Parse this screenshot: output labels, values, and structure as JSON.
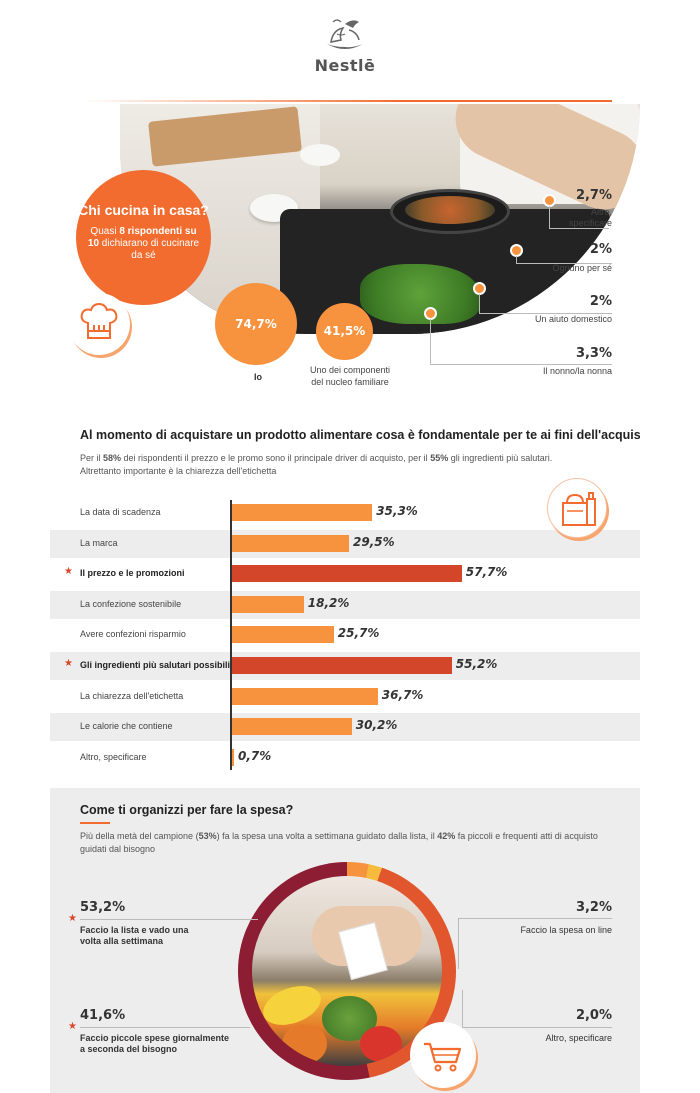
{
  "brand": {
    "name": "Nestlē"
  },
  "colors": {
    "orange": "#f26c2f",
    "light_orange": "#f7933f",
    "red": "#d4462a",
    "dark_red": "#8c1d33",
    "gray_bg": "#eeeded"
  },
  "section1": {
    "bubble_title": "Chi cucina in casa?",
    "bubble_text_prefix": "Quasi ",
    "bubble_text_bold": "8 rispondenti su 10",
    "bubble_text_suffix": " dichiarano di cucinare da sé",
    "io": {
      "value": "74,7%",
      "label": "Io"
    },
    "uno": {
      "value": "41,5%",
      "label": "Uno dei componenti del nucleo familiare"
    },
    "right_items": [
      {
        "value": "2,7%",
        "label": "Altro, specificare"
      },
      {
        "value": "2%",
        "label": "Ognuno per sé"
      },
      {
        "value": "2%",
        "label": "Un aiuto domestico"
      },
      {
        "value": "3,3%",
        "label": "Il nonno/la nonna"
      }
    ],
    "icons": {
      "chef": "chef-hat-icon"
    }
  },
  "section2": {
    "title": "Al momento di acquistare un prodotto alimentare cosa è fondamentale per te ai fini dell'acquisto?",
    "desc_1": "Per il ",
    "desc_b1": "58%",
    "desc_2": " dei rispondenti il prezzo e le promo sono il principale driver di acquisto, per il ",
    "desc_b2": "55%",
    "desc_3": " gli ingredienti più salutari.",
    "desc_4": "Altrettanto importante è la chiarezza dell'etichetta",
    "icon": "grocery-bag-icon"
  },
  "chart_data": {
    "type": "bar",
    "categories": [
      "La data di scadenza",
      "La marca",
      "Il prezzo e le promozioni",
      "La confezione sostenibile",
      "Avere confezioni risparmio",
      "Gli ingredienti più salutari possibili",
      "La chiarezza dell'etichetta",
      "Le calorie che contiene",
      "Altro, specificare"
    ],
    "values": [
      35.3,
      29.5,
      57.7,
      18.2,
      25.7,
      55.2,
      36.7,
      30.2,
      0.7
    ],
    "value_labels": [
      "35,3%",
      "29,5%",
      "57,7%",
      "18,2%",
      "25,7%",
      "55,2%",
      "36,7%",
      "30,2%",
      "0,7%"
    ],
    "highlighted": [
      false,
      false,
      true,
      false,
      false,
      true,
      false,
      false,
      false
    ],
    "xlim": [
      0,
      100
    ]
  },
  "section3": {
    "title": "Come ti organizzi per fare la spesa?",
    "desc_1": "Più della metà del campione (",
    "desc_b1": "53%",
    "desc_2": ") fa la spesa una volta a settimana guidato dalla lista, il ",
    "desc_b2": "42%",
    "desc_3": " fa piccoli e frequenti atti di acquisto guidati dal bisogno",
    "left_items": [
      {
        "value": "53,2%",
        "label": "Faccio la lista e vado una volta alla settimana"
      },
      {
        "value": "41,6%",
        "label": "Faccio piccole spese giornalmente a seconda del bisogno"
      }
    ],
    "right_items": [
      {
        "value": "3,2%",
        "label": "Faccio la spesa on line"
      },
      {
        "value": "2,0%",
        "label": "Altro, specificare"
      }
    ],
    "icon": "shopping-cart-icon"
  }
}
